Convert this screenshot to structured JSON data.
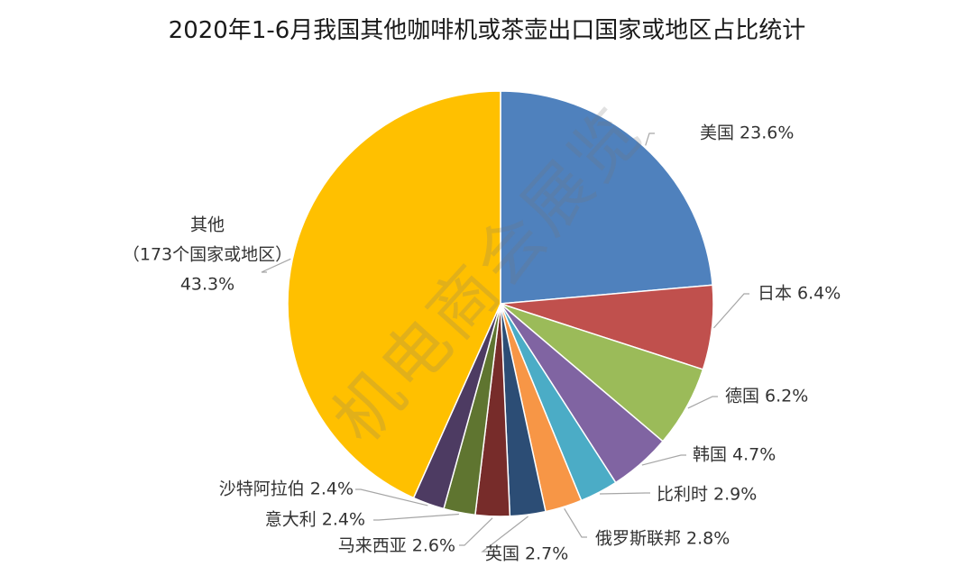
{
  "chart_data": {
    "type": "pie",
    "title": "2020年1-6月我国其他咖啡机或茶壶出口国家或地区占比统计",
    "slices": [
      {
        "name": "美国",
        "value": 23.6,
        "label": "美国 23.6%",
        "color": "#4f81bd"
      },
      {
        "name": "日本",
        "value": 6.4,
        "label": "日本 6.4%",
        "color": "#c0504d"
      },
      {
        "name": "德国",
        "value": 6.2,
        "label": "德国 6.2%",
        "color": "#9bbb59"
      },
      {
        "name": "韩国",
        "value": 4.7,
        "label": "韩国 4.7%",
        "color": "#8064a2"
      },
      {
        "name": "比利时",
        "value": 2.9,
        "label": "比利时 2.9%",
        "color": "#4bacc6"
      },
      {
        "name": "俄罗斯联邦",
        "value": 2.8,
        "label": "俄罗斯联邦 2.8%",
        "color": "#f79646"
      },
      {
        "name": "英国",
        "value": 2.7,
        "label": "英国 2.7%",
        "color": "#2c4d75"
      },
      {
        "name": "马来西亚",
        "value": 2.6,
        "label": "马来西亚 2.6%",
        "color": "#772c2a"
      },
      {
        "name": "意大利",
        "value": 2.4,
        "label": "意大利 2.4%",
        "color": "#5f7530"
      },
      {
        "name": "沙特阿拉伯",
        "value": 2.4,
        "label": "沙特阿拉伯 2.4%",
        "color": "#4d3b62"
      },
      {
        "name": "其他",
        "value": 43.3,
        "label_lines": [
          "其他",
          "（173个国家或地区）",
          "43.3%"
        ],
        "color": "#ffc000"
      }
    ]
  },
  "watermark": "机电商会展览"
}
